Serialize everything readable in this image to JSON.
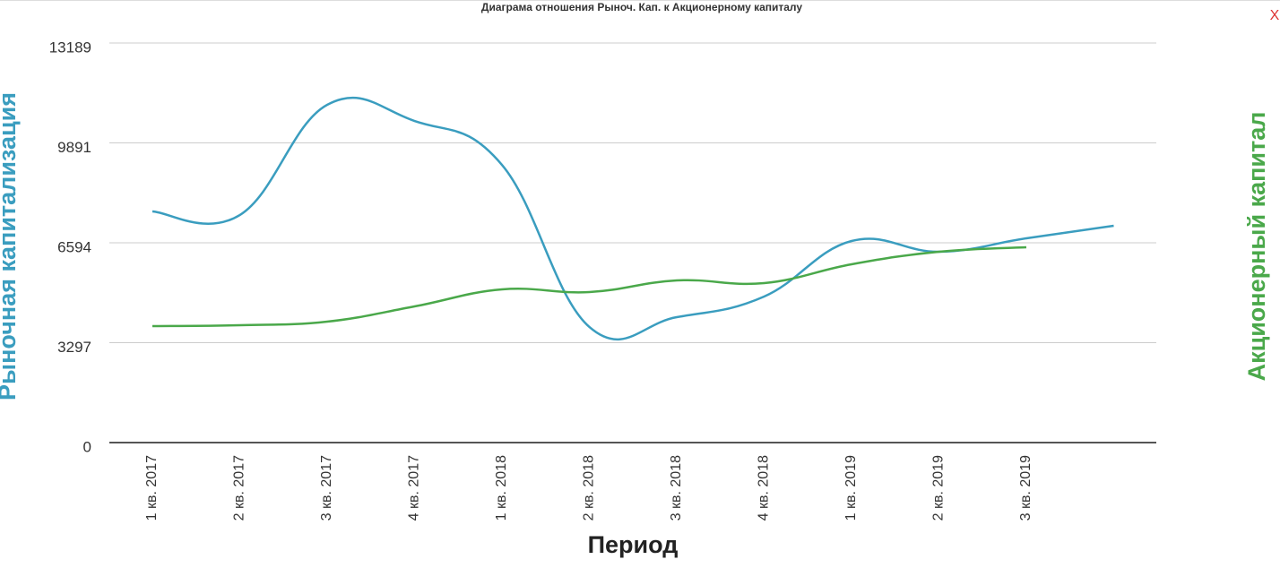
{
  "close_button": "X",
  "chart_data": {
    "type": "line",
    "title": "Диаграма отношения Рыноч. Кап. к Акционерному капиталу",
    "x_label": "Период",
    "y_label": "Рыночная капитализация",
    "y2_label": "Акционерный капитал",
    "categories": [
      "1 кв. 2017",
      "2 кв. 2017",
      "3 кв. 2017",
      "4 кв. 2017",
      "1 кв. 2018",
      "2 кв. 2018",
      "3 кв. 2018",
      "4 кв. 2018",
      "1 кв. 2019",
      "2 кв. 2019",
      "3 кв. 2019",
      null
    ],
    "series": [
      {
        "name": "Рыночная капитализация",
        "color": "#3a9dbf",
        "values": [
          7630,
          7511,
          11148,
          10616,
          9167,
          3815,
          4140,
          4820,
          6654,
          6299,
          6743,
          7157
        ]
      },
      {
        "name": "Акционерный капитал",
        "color": "#4aa84a",
        "values": [
          3844,
          3874,
          3992,
          4495,
          5057,
          4968,
          5352,
          5264,
          5885,
          6299,
          6447,
          null
        ]
      }
    ],
    "ylim": [
      0,
      13189
    ],
    "yticks": [
      0,
      3297,
      6594,
      9891,
      13189
    ],
    "grid": true
  }
}
